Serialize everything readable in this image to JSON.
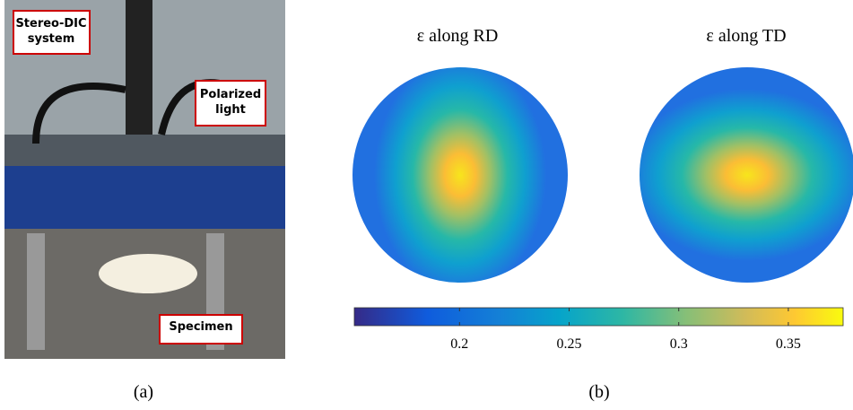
{
  "panel_a": {
    "labels": [
      "Stereo-DIC\nsystem",
      "Polarized\nlight",
      "Specimen"
    ],
    "caption": "(a)"
  },
  "chart_data": {
    "type": "heatmap",
    "titles": [
      "ε along RD",
      "ε along TD"
    ],
    "colorbar_lim": [
      0.152,
      0.375
    ],
    "colorbar_ticks": [
      0.2,
      0.25,
      0.3,
      0.35
    ]
  },
  "caption_b": "(b)"
}
